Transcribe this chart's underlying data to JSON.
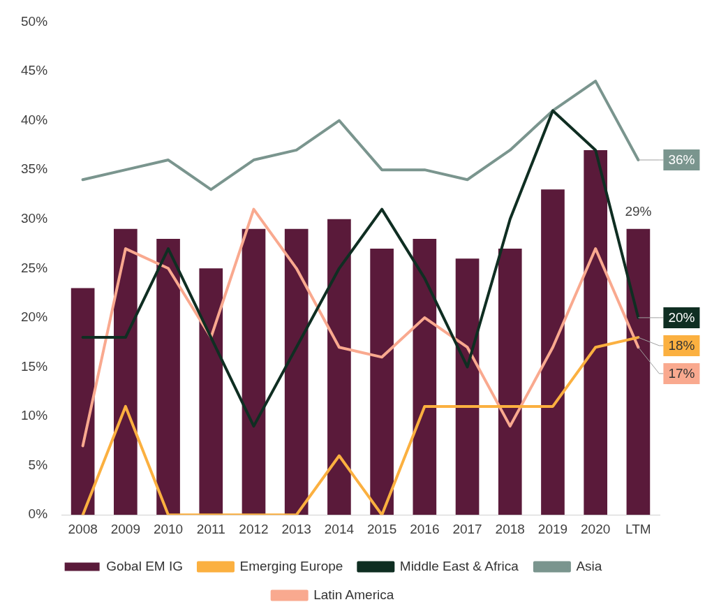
{
  "chart_data": {
    "type": "bar",
    "categories": [
      "2008",
      "2009",
      "2010",
      "2011",
      "2012",
      "2013",
      "2014",
      "2015",
      "2016",
      "2017",
      "2018",
      "2019",
      "2020",
      "LTM"
    ],
    "series": [
      {
        "name": "Gobal EM IG",
        "color": "#5a1a3a",
        "values": [
          23,
          29,
          28,
          25,
          29,
          29,
          30,
          27,
          28,
          26,
          27,
          33,
          37,
          29
        ],
        "value_labels": [
          null,
          null,
          null,
          null,
          null,
          null,
          null,
          null,
          null,
          null,
          null,
          null,
          null,
          "29%"
        ]
      },
      {
        "name": "Emerging Europe",
        "type": "line",
        "color": "#fbb040",
        "values": [
          0,
          11,
          0,
          0,
          0,
          0,
          6,
          0,
          11,
          11,
          11,
          11,
          17,
          18
        ],
        "value_labels": [
          null,
          null,
          null,
          null,
          null,
          null,
          null,
          null,
          null,
          null,
          null,
          null,
          null,
          "18%"
        ]
      },
      {
        "name": "Middle East & Africa",
        "type": "line",
        "color": "#0f2e22",
        "values": [
          18,
          18,
          27,
          18,
          9,
          17,
          25,
          31,
          24,
          15,
          30,
          41,
          37,
          20
        ],
        "value_labels": [
          null,
          null,
          null,
          null,
          null,
          null,
          null,
          null,
          null,
          null,
          null,
          null,
          null,
          "20%"
        ]
      },
      {
        "name": "Asia",
        "type": "line",
        "color": "#7a958e",
        "values": [
          34,
          35,
          36,
          33,
          36,
          37,
          40,
          35,
          35,
          34,
          37,
          41,
          44,
          36
        ],
        "value_labels": [
          null,
          null,
          null,
          null,
          null,
          null,
          null,
          null,
          null,
          null,
          null,
          null,
          null,
          "36%"
        ]
      },
      {
        "name": "Latin America",
        "type": "line",
        "color": "#f9a98f",
        "values": [
          7,
          27,
          25,
          18,
          31,
          25,
          17,
          16,
          20,
          17,
          9,
          17,
          27,
          17
        ],
        "value_labels": [
          null,
          null,
          null,
          null,
          null,
          null,
          null,
          null,
          null,
          null,
          null,
          null,
          null,
          "17%"
        ]
      }
    ],
    "ylim": [
      0,
      50
    ],
    "yticks": [
      {
        "value": 0,
        "label": "0%"
      },
      {
        "value": 5,
        "label": "5%"
      },
      {
        "value": 10,
        "label": "10%"
      },
      {
        "value": 15,
        "label": "15%"
      },
      {
        "value": 20,
        "label": "20%"
      },
      {
        "value": 25,
        "label": "25%"
      },
      {
        "value": 30,
        "label": "30%"
      },
      {
        "value": 35,
        "label": "35%"
      },
      {
        "value": 40,
        "label": "40%"
      },
      {
        "value": 45,
        "label": "45%"
      },
      {
        "value": 50,
        "label": "50%"
      }
    ],
    "grid": false,
    "legend": "bottom",
    "marker": "none",
    "line_style": "solid"
  }
}
